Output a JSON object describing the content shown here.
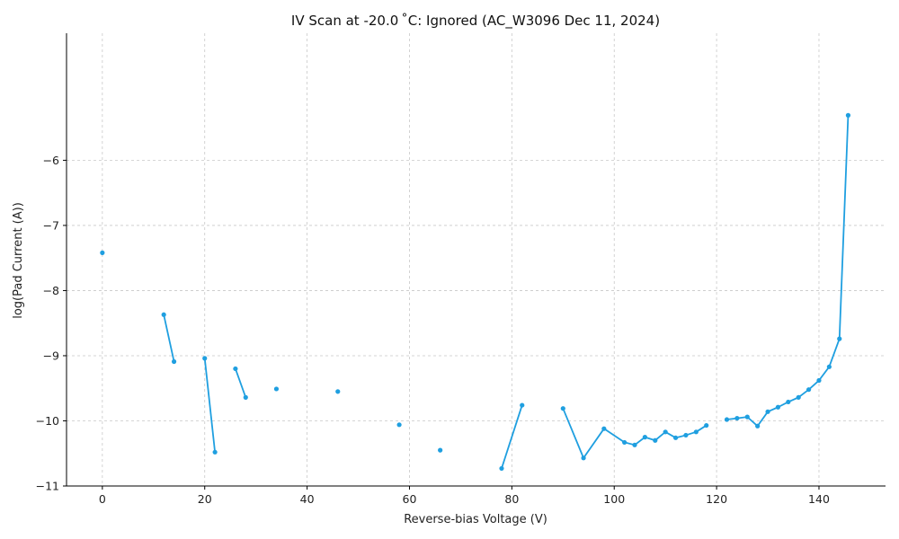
{
  "chart_data": {
    "type": "line",
    "title": "IV Scan at -20.0 ˚C: Ignored (AC_W3096 Dec 11, 2024)",
    "xlabel": "Reverse-bias Voltage (V)",
    "ylabel": "log(Pad Current (A))",
    "xlim": [
      -7,
      153
    ],
    "ylim": [
      -11,
      -4.05
    ],
    "x_ticks": [
      0,
      20,
      40,
      60,
      80,
      100,
      120,
      140
    ],
    "y_ticks": [
      -11,
      -10,
      -9,
      -8,
      -7,
      -6
    ],
    "grid": true,
    "color": "#1f9fe0",
    "segments": [
      [
        [
          0,
          -7.42
        ]
      ],
      [
        [
          12,
          -8.37
        ],
        [
          14,
          -9.09
        ]
      ],
      [
        [
          20,
          -9.04
        ],
        [
          22,
          -10.48
        ]
      ],
      [
        [
          26,
          -9.2
        ],
        [
          28,
          -9.64
        ]
      ],
      [
        [
          34,
          -9.51
        ]
      ],
      [
        [
          46,
          -9.55
        ]
      ],
      [
        [
          58,
          -10.06
        ]
      ],
      [
        [
          66,
          -10.45
        ]
      ],
      [
        [
          78,
          -10.73
        ],
        [
          82,
          -9.76
        ]
      ],
      [
        [
          90,
          -9.81
        ],
        [
          94,
          -10.57
        ],
        [
          98,
          -10.12
        ],
        [
          102,
          -10.33
        ],
        [
          104,
          -10.37
        ],
        [
          106,
          -10.25
        ],
        [
          108,
          -10.3
        ],
        [
          110,
          -10.17
        ],
        [
          112,
          -10.26
        ],
        [
          114,
          -10.22
        ],
        [
          116,
          -10.17
        ],
        [
          118,
          -10.07
        ]
      ],
      [
        [
          122,
          -9.98
        ],
        [
          124,
          -9.96
        ],
        [
          126,
          -9.94
        ],
        [
          128,
          -10.08
        ],
        [
          130,
          -9.86
        ],
        [
          132,
          -9.79
        ],
        [
          134,
          -9.71
        ],
        [
          136,
          -9.64
        ],
        [
          138,
          -9.52
        ],
        [
          140,
          -9.38
        ],
        [
          142,
          -9.17
        ],
        [
          144,
          -8.74
        ],
        [
          145.7,
          -5.31
        ]
      ]
    ]
  }
}
